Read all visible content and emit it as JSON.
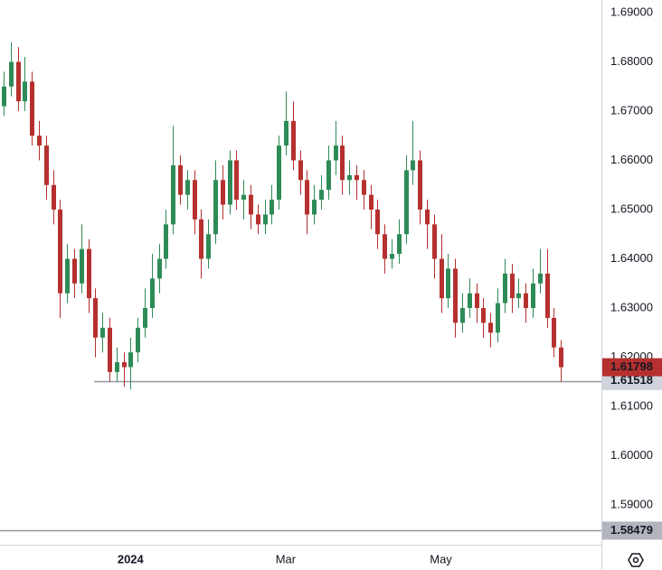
{
  "chart_data": {
    "type": "candlestick",
    "up_color": "#2e8b57",
    "down_color": "#b5302f",
    "ylim": [
      1.58193,
      1.69257
    ],
    "yticks": [
      {
        "value": 1.69,
        "label": "1.69000"
      },
      {
        "value": 1.68,
        "label": "1.68000"
      },
      {
        "value": 1.67,
        "label": "1.67000"
      },
      {
        "value": 1.66,
        "label": "1.66000"
      },
      {
        "value": 1.65,
        "label": "1.65000"
      },
      {
        "value": 1.64,
        "label": "1.64000"
      },
      {
        "value": 1.63,
        "label": "1.63000"
      },
      {
        "value": 1.62,
        "label": "1.62000"
      },
      {
        "value": 1.61,
        "label": "1.61000"
      },
      {
        "value": 1.6,
        "label": "1.60000"
      },
      {
        "value": 1.59,
        "label": "1.59000"
      }
    ],
    "xlim": [
      -0.5,
      84.75
    ],
    "xticks": [
      {
        "value": 18,
        "label": "2024"
      },
      {
        "value": 40,
        "label": "Mar"
      },
      {
        "value": 62,
        "label": "May"
      }
    ],
    "last_price": 1.61798,
    "levels": [
      {
        "value": 1.61518,
        "color": "#9598a1",
        "label_color": "#d1d4dc"
      },
      {
        "value": 1.58479,
        "color": "#9598a1",
        "label_color": "#b2b5be"
      }
    ],
    "ohlc": [
      [
        1.671,
        1.678,
        1.669,
        1.675
      ],
      [
        1.675,
        1.684,
        1.673,
        1.68
      ],
      [
        1.68,
        1.683,
        1.67,
        1.672
      ],
      [
        1.672,
        1.681,
        1.67,
        1.676
      ],
      [
        1.676,
        1.678,
        1.663,
        1.665
      ],
      [
        1.665,
        1.668,
        1.66,
        1.663
      ],
      [
        1.663,
        1.665,
        1.652,
        1.655
      ],
      [
        1.655,
        1.658,
        1.647,
        1.65
      ],
      [
        1.65,
        1.652,
        1.628,
        1.633
      ],
      [
        1.633,
        1.643,
        1.631,
        1.64
      ],
      [
        1.64,
        1.642,
        1.632,
        1.635
      ],
      [
        1.635,
        1.647,
        1.633,
        1.642
      ],
      [
        1.642,
        1.644,
        1.629,
        1.632
      ],
      [
        1.632,
        1.634,
        1.62,
        1.624
      ],
      [
        1.624,
        1.629,
        1.621,
        1.626
      ],
      [
        1.626,
        1.628,
        1.615,
        1.617
      ],
      [
        1.617,
        1.622,
        1.615,
        1.619
      ],
      [
        1.619,
        1.621,
        1.614,
        1.618
      ],
      [
        1.618,
        1.624,
        1.6135,
        1.621
      ],
      [
        1.621,
        1.628,
        1.619,
        1.626
      ],
      [
        1.626,
        1.634,
        1.624,
        1.63
      ],
      [
        1.63,
        1.641,
        1.628,
        1.636
      ],
      [
        1.636,
        1.643,
        1.633,
        1.64
      ],
      [
        1.64,
        1.65,
        1.638,
        1.647
      ],
      [
        1.647,
        1.667,
        1.645,
        1.659
      ],
      [
        1.659,
        1.661,
        1.651,
        1.653
      ],
      [
        1.653,
        1.658,
        1.65,
        1.656
      ],
      [
        1.656,
        1.658,
        1.645,
        1.648
      ],
      [
        1.648,
        1.65,
        1.636,
        1.64
      ],
      [
        1.64,
        1.648,
        1.638,
        1.645
      ],
      [
        1.645,
        1.66,
        1.643,
        1.656
      ],
      [
        1.656,
        1.659,
        1.648,
        1.651
      ],
      [
        1.651,
        1.662,
        1.649,
        1.66
      ],
      [
        1.66,
        1.662,
        1.65,
        1.652
      ],
      [
        1.652,
        1.656,
        1.648,
        1.653
      ],
      [
        1.653,
        1.655,
        1.646,
        1.649
      ],
      [
        1.649,
        1.651,
        1.645,
        1.647
      ],
      [
        1.647,
        1.652,
        1.645,
        1.649
      ],
      [
        1.649,
        1.655,
        1.647,
        1.652
      ],
      [
        1.652,
        1.665,
        1.65,
        1.663
      ],
      [
        1.663,
        1.674,
        1.661,
        1.668
      ],
      [
        1.668,
        1.672,
        1.658,
        1.66
      ],
      [
        1.66,
        1.662,
        1.653,
        1.656
      ],
      [
        1.656,
        1.658,
        1.645,
        1.649
      ],
      [
        1.649,
        1.655,
        1.647,
        1.652
      ],
      [
        1.652,
        1.657,
        1.65,
        1.654
      ],
      [
        1.654,
        1.663,
        1.652,
        1.66
      ],
      [
        1.66,
        1.668,
        1.657,
        1.663
      ],
      [
        1.663,
        1.665,
        1.653,
        1.656
      ],
      [
        1.656,
        1.66,
        1.653,
        1.657
      ],
      [
        1.657,
        1.659,
        1.652,
        1.656
      ],
      [
        1.656,
        1.658,
        1.65,
        1.653
      ],
      [
        1.653,
        1.655,
        1.646,
        1.65
      ],
      [
        1.65,
        1.652,
        1.642,
        1.645
      ],
      [
        1.645,
        1.647,
        1.637,
        1.64
      ],
      [
        1.64,
        1.644,
        1.638,
        1.641
      ],
      [
        1.641,
        1.648,
        1.639,
        1.645
      ],
      [
        1.645,
        1.661,
        1.643,
        1.658
      ],
      [
        1.658,
        1.668,
        1.655,
        1.66
      ],
      [
        1.66,
        1.662,
        1.647,
        1.65
      ],
      [
        1.65,
        1.652,
        1.642,
        1.647
      ],
      [
        1.647,
        1.649,
        1.636,
        1.64
      ],
      [
        1.64,
        1.645,
        1.629,
        1.632
      ],
      [
        1.632,
        1.641,
        1.63,
        1.638
      ],
      [
        1.638,
        1.64,
        1.624,
        1.627
      ],
      [
        1.627,
        1.633,
        1.625,
        1.63
      ],
      [
        1.63,
        1.636,
        1.628,
        1.633
      ],
      [
        1.633,
        1.635,
        1.627,
        1.63
      ],
      [
        1.63,
        1.632,
        1.624,
        1.627
      ],
      [
        1.627,
        1.629,
        1.622,
        1.625
      ],
      [
        1.625,
        1.634,
        1.623,
        1.631
      ],
      [
        1.631,
        1.64,
        1.629,
        1.637
      ],
      [
        1.637,
        1.639,
        1.629,
        1.632
      ],
      [
        1.632,
        1.636,
        1.63,
        1.633
      ],
      [
        1.633,
        1.635,
        1.627,
        1.63
      ],
      [
        1.63,
        1.638,
        1.628,
        1.635
      ],
      [
        1.635,
        1.642,
        1.633,
        1.637
      ],
      [
        1.637,
        1.642,
        1.626,
        1.628
      ],
      [
        1.628,
        1.63,
        1.62,
        1.622
      ],
      [
        1.622,
        1.6235,
        1.615,
        1.61798
      ]
    ]
  }
}
